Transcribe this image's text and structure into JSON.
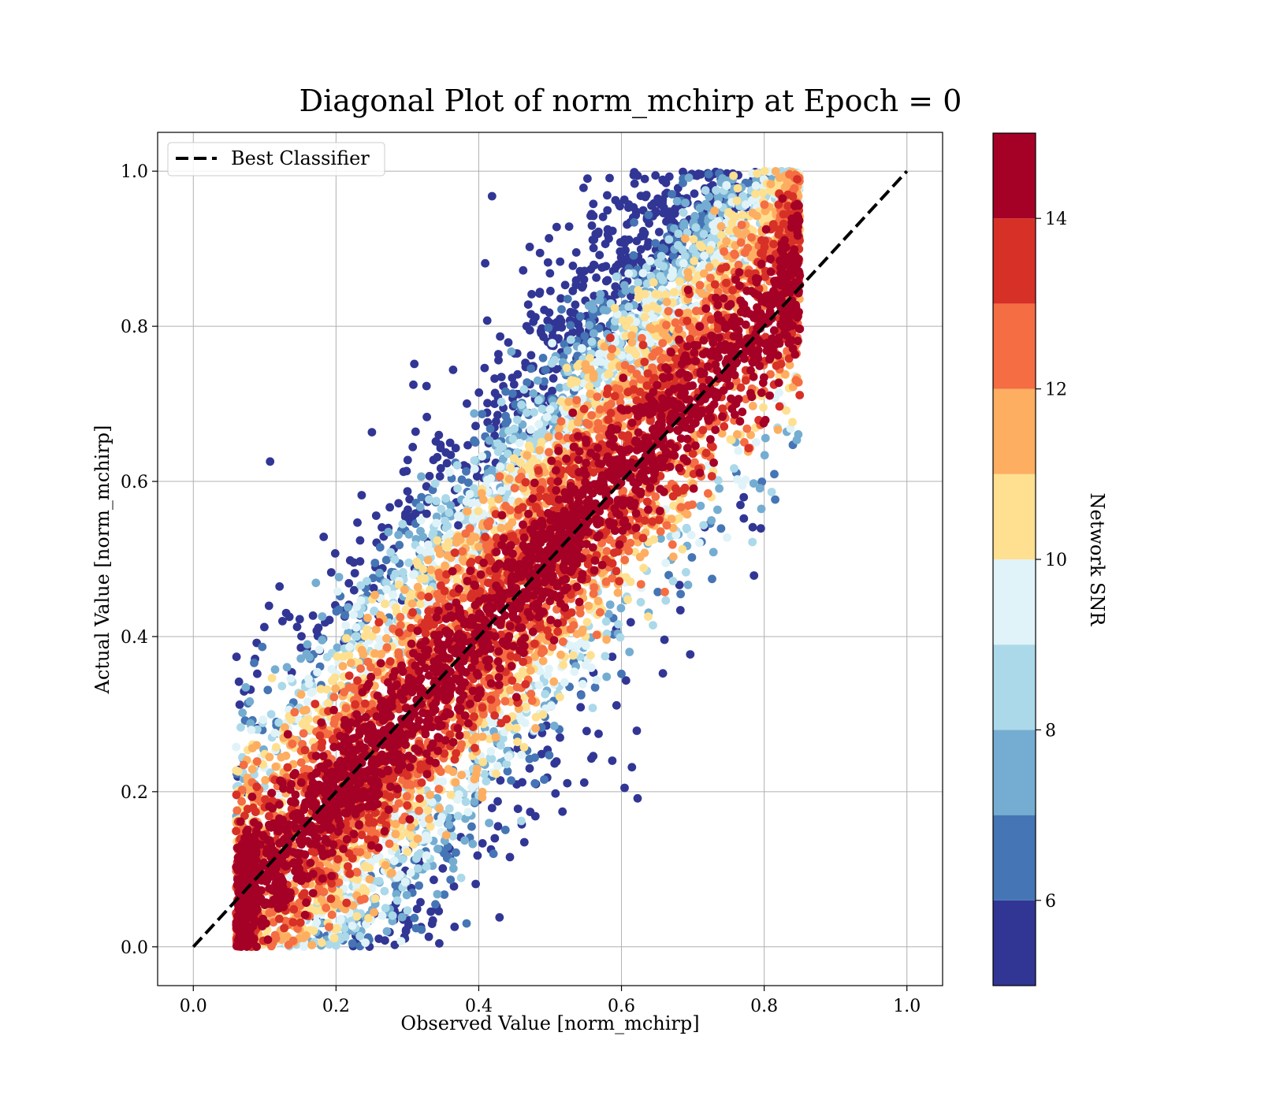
{
  "chart_data": {
    "type": "scatter",
    "title": "Diagonal Plot of norm_mchirp at Epoch = 0",
    "xlabel": "Observed Value [norm_mchirp]",
    "ylabel": "Actual Value [norm_mchirp]",
    "xlim": [
      -0.05,
      1.05
    ],
    "ylim": [
      -0.05,
      1.05
    ],
    "xticks": [
      "0.0",
      "0.2",
      "0.4",
      "0.6",
      "0.8",
      "1.0"
    ],
    "yticks": [
      "0.0",
      "0.2",
      "0.4",
      "0.6",
      "0.8",
      "1.0"
    ],
    "grid": true,
    "legend": {
      "position": "upper-left",
      "label": "Best Classifier"
    },
    "reference_line": {
      "x": [
        0,
        1
      ],
      "y": [
        0,
        1
      ],
      "style": "dashed",
      "color": "#000000",
      "name": "Best Classifier"
    },
    "colorbar": {
      "label": "Network SNR",
      "range": [
        5,
        15
      ],
      "ticks": [
        "6",
        "8",
        "10",
        "12",
        "14"
      ],
      "colors": [
        "#313695",
        "#4575b4",
        "#74add1",
        "#abd9e9",
        "#e0f3f8",
        "#fee090",
        "#fdae61",
        "#f46d43",
        "#d73027",
        "#a50026"
      ]
    },
    "point_cloud": {
      "description": "Dense scatter of predictions; high-SNR (dark red) points concentrated along the diagonal, lower-SNR points spread toward upper-left and lower-right",
      "observed_range": [
        0.06,
        0.85
      ],
      "actual_range": [
        0.0,
        1.0
      ],
      "approx_count": 9000
    }
  }
}
